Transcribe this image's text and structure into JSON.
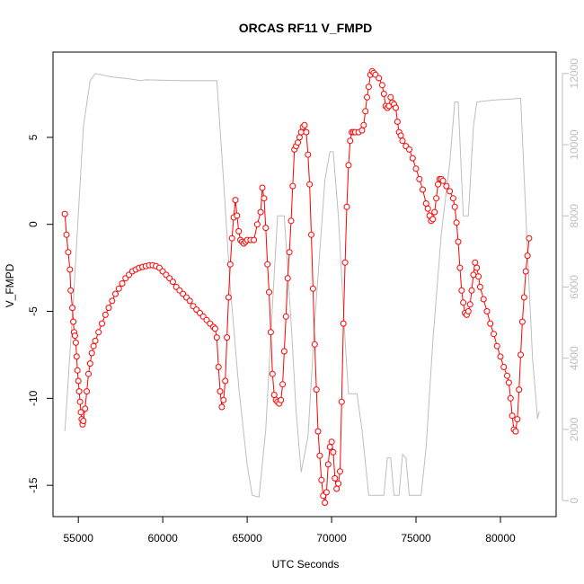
{
  "chart_data": {
    "type": "line",
    "title": "ORCAS RF11 V_FMPD",
    "xlabel": "UTC Seconds",
    "ylabel": "V_FMPD",
    "xlim": [
      53500,
      83300
    ],
    "ylim": [
      -16.8,
      9.9
    ],
    "y2lim": [
      -450,
      12600
    ],
    "x_ticks": [
      55000,
      60000,
      65000,
      70000,
      75000,
      80000
    ],
    "y_ticks": [
      -15,
      -10,
      -5,
      0,
      5
    ],
    "y2_ticks": [
      0,
      2000,
      4000,
      6000,
      8000,
      10000,
      12000
    ],
    "series": [
      {
        "name": "",
        "axis": "left",
        "style": "points-and-lines",
        "color": "#ff0000",
        "points": [
          [
            54200,
            0.6
          ],
          [
            54300,
            -0.6
          ],
          [
            54400,
            -1.6
          ],
          [
            54500,
            -2.6
          ],
          [
            54550,
            -3.8
          ],
          [
            54650,
            -4.8
          ],
          [
            54700,
            -5.6
          ],
          [
            54750,
            -6.2
          ],
          [
            54800,
            -6.4
          ],
          [
            54850,
            -6.8
          ],
          [
            54900,
            -7.6
          ],
          [
            54950,
            -8.4
          ],
          [
            55000,
            -9.0
          ],
          [
            55050,
            -9.6
          ],
          [
            55100,
            -10.2
          ],
          [
            55150,
            -10.8
          ],
          [
            55200,
            -11.2
          ],
          [
            55250,
            -11.5
          ],
          [
            55300,
            -11.3
          ],
          [
            55400,
            -10.6
          ],
          [
            55500,
            -9.6
          ],
          [
            55600,
            -8.6
          ],
          [
            55700,
            -8.0
          ],
          [
            55800,
            -7.4
          ],
          [
            55900,
            -7.0
          ],
          [
            56000,
            -6.7
          ],
          [
            56200,
            -6.2
          ],
          [
            56400,
            -5.7
          ],
          [
            56600,
            -5.2
          ],
          [
            56800,
            -4.8
          ],
          [
            57000,
            -4.4
          ],
          [
            57200,
            -4.0
          ],
          [
            57400,
            -3.7
          ],
          [
            57600,
            -3.4
          ],
          [
            57800,
            -3.1
          ],
          [
            58000,
            -2.9
          ],
          [
            58200,
            -2.7
          ],
          [
            58400,
            -2.6
          ],
          [
            58600,
            -2.5
          ],
          [
            58800,
            -2.45
          ],
          [
            59000,
            -2.4
          ],
          [
            59200,
            -2.35
          ],
          [
            59400,
            -2.35
          ],
          [
            59600,
            -2.4
          ],
          [
            59800,
            -2.5
          ],
          [
            60000,
            -2.7
          ],
          [
            60200,
            -2.9
          ],
          [
            60400,
            -3.1
          ],
          [
            60600,
            -3.3
          ],
          [
            60800,
            -3.6
          ],
          [
            61000,
            -3.8
          ],
          [
            61200,
            -4.0
          ],
          [
            61400,
            -4.2
          ],
          [
            61600,
            -4.4
          ],
          [
            61800,
            -4.7
          ],
          [
            62000,
            -4.9
          ],
          [
            62200,
            -5.1
          ],
          [
            62400,
            -5.3
          ],
          [
            62600,
            -5.5
          ],
          [
            62800,
            -5.7
          ],
          [
            63000,
            -5.9
          ],
          [
            63100,
            -6.0
          ],
          [
            63200,
            -6.5
          ],
          [
            63300,
            -8.2
          ],
          [
            63400,
            -9.6
          ],
          [
            63500,
            -10.5
          ],
          [
            63600,
            -10.1
          ],
          [
            63700,
            -9.0
          ],
          [
            63800,
            -6.5
          ],
          [
            63900,
            -4.2
          ],
          [
            64000,
            -2.3
          ],
          [
            64100,
            -0.8
          ],
          [
            64200,
            0.4
          ],
          [
            64300,
            1.4
          ],
          [
            64400,
            0.5
          ],
          [
            64500,
            -0.4
          ],
          [
            64600,
            -0.9
          ],
          [
            64700,
            -1.0
          ],
          [
            64800,
            -1.1
          ],
          [
            64900,
            -1.0
          ],
          [
            65000,
            -0.9
          ],
          [
            65200,
            -0.9
          ],
          [
            65400,
            -0.9
          ],
          [
            65600,
            0.0
          ],
          [
            65800,
            0.7
          ],
          [
            65900,
            2.1
          ],
          [
            66000,
            1.5
          ],
          [
            66100,
            -0.2
          ],
          [
            66200,
            -2.3
          ],
          [
            66300,
            -3.9
          ],
          [
            66400,
            -6.2
          ],
          [
            66500,
            -8.6
          ],
          [
            66600,
            -9.8
          ],
          [
            66700,
            -10.1
          ],
          [
            66800,
            -10.2
          ],
          [
            66900,
            -10.3
          ],
          [
            67000,
            -10.1
          ],
          [
            67100,
            -9.2
          ],
          [
            67200,
            -7.3
          ],
          [
            67300,
            -5.3
          ],
          [
            67400,
            -3.1
          ],
          [
            67500,
            -1.6
          ],
          [
            67600,
            0.2
          ],
          [
            67700,
            2.2
          ],
          [
            67800,
            4.3
          ],
          [
            67900,
            4.5
          ],
          [
            68000,
            4.7
          ],
          [
            68100,
            5.0
          ],
          [
            68200,
            5.3
          ],
          [
            68300,
            5.6
          ],
          [
            68400,
            5.7
          ],
          [
            68500,
            5.3
          ],
          [
            68600,
            4.0
          ],
          [
            68700,
            2.3
          ],
          [
            68800,
            -0.6
          ],
          [
            68900,
            -3.7
          ],
          [
            69000,
            -6.9
          ],
          [
            69100,
            -9.5
          ],
          [
            69200,
            -11.9
          ],
          [
            69300,
            -13.3
          ],
          [
            69400,
            -14.7
          ],
          [
            69500,
            -15.6
          ],
          [
            69600,
            -16.0
          ],
          [
            69700,
            -15.4
          ],
          [
            69800,
            -13.8
          ],
          [
            69900,
            -12.8
          ],
          [
            70000,
            -12.5
          ],
          [
            70100,
            -13.1
          ],
          [
            70200,
            -14.6
          ],
          [
            70300,
            -15.2
          ],
          [
            70400,
            -14.9
          ],
          [
            70500,
            -14.2
          ],
          [
            70600,
            -10.2
          ],
          [
            70700,
            -5.7
          ],
          [
            70800,
            -2.2
          ],
          [
            70900,
            1.0
          ],
          [
            71000,
            3.4
          ],
          [
            71100,
            4.8
          ],
          [
            71200,
            5.3
          ],
          [
            71300,
            5.3
          ],
          [
            71400,
            5.3
          ],
          [
            71600,
            5.3
          ],
          [
            71800,
            5.4
          ],
          [
            71900,
            5.7
          ],
          [
            72000,
            6.5
          ],
          [
            72100,
            7.3
          ],
          [
            72200,
            7.9
          ],
          [
            72300,
            8.6
          ],
          [
            72400,
            8.8
          ],
          [
            72500,
            8.7
          ],
          [
            72600,
            8.6
          ],
          [
            72800,
            8.4
          ],
          [
            73000,
            8.0
          ],
          [
            73100,
            7.5
          ],
          [
            73200,
            6.8
          ],
          [
            73300,
            6.7
          ],
          [
            73400,
            6.8
          ],
          [
            73500,
            7.3
          ],
          [
            73600,
            7.0
          ],
          [
            73700,
            6.9
          ],
          [
            73800,
            6.7
          ],
          [
            73900,
            5.9
          ],
          [
            74000,
            5.3
          ],
          [
            74100,
            5.1
          ],
          [
            74200,
            4.8
          ],
          [
            74400,
            4.5
          ],
          [
            74600,
            4.3
          ],
          [
            74800,
            3.8
          ],
          [
            75000,
            3.2
          ],
          [
            75200,
            2.6
          ],
          [
            75400,
            2.0
          ],
          [
            75600,
            1.2
          ],
          [
            75700,
            0.9
          ],
          [
            75800,
            0.5
          ],
          [
            75900,
            0.2
          ],
          [
            76000,
            0.3
          ],
          [
            76100,
            0.7
          ],
          [
            76200,
            1.5
          ],
          [
            76300,
            2.3
          ],
          [
            76400,
            2.6
          ],
          [
            76500,
            2.6
          ],
          [
            76600,
            2.5
          ],
          [
            76800,
            2.2
          ],
          [
            77000,
            1.9
          ],
          [
            77200,
            1.5
          ],
          [
            77300,
            1.0
          ],
          [
            77400,
            0.1
          ],
          [
            77500,
            -1.0
          ],
          [
            77600,
            -2.5
          ],
          [
            77700,
            -3.8
          ],
          [
            77800,
            -4.5
          ],
          [
            77900,
            -5.1
          ],
          [
            78000,
            -5.2
          ],
          [
            78100,
            -5.0
          ],
          [
            78200,
            -4.6
          ],
          [
            78300,
            -3.8
          ],
          [
            78400,
            -2.9
          ],
          [
            78500,
            -2.2
          ],
          [
            78600,
            -2.5
          ],
          [
            78700,
            -3.0
          ],
          [
            78800,
            -3.6
          ],
          [
            79000,
            -4.3
          ],
          [
            79200,
            -5.0
          ],
          [
            79400,
            -5.7
          ],
          [
            79600,
            -6.3
          ],
          [
            79800,
            -7.0
          ],
          [
            80000,
            -7.6
          ],
          [
            80200,
            -8.2
          ],
          [
            80400,
            -8.7
          ],
          [
            80500,
            -9.1
          ],
          [
            80600,
            -10.0
          ],
          [
            80700,
            -11.0
          ],
          [
            80800,
            -11.8
          ],
          [
            80900,
            -11.9
          ],
          [
            81000,
            -11.2
          ],
          [
            81100,
            -9.5
          ],
          [
            81200,
            -7.5
          ],
          [
            81300,
            -5.6
          ],
          [
            81400,
            -4.2
          ],
          [
            81500,
            -2.7
          ],
          [
            81600,
            -1.8
          ],
          [
            81700,
            -0.8
          ]
        ]
      },
      {
        "name": "",
        "axis": "right",
        "style": "line",
        "color": "#bebebe",
        "points": [
          [
            54200,
            1950
          ],
          [
            54700,
            5600
          ],
          [
            55300,
            10500
          ],
          [
            55700,
            11800
          ],
          [
            56000,
            12000
          ],
          [
            57000,
            11900
          ],
          [
            58000,
            11850
          ],
          [
            58700,
            11800
          ],
          [
            59000,
            11820
          ],
          [
            61000,
            11800
          ],
          [
            63200,
            11800
          ],
          [
            63600,
            9000
          ],
          [
            64000,
            6000
          ],
          [
            64500,
            3200
          ],
          [
            65000,
            1000
          ],
          [
            65300,
            150
          ],
          [
            65700,
            100
          ],
          [
            66100,
            2000
          ],
          [
            66500,
            5500
          ],
          [
            66800,
            8000
          ],
          [
            67200,
            8000
          ],
          [
            67600,
            5000
          ],
          [
            67900,
            2500
          ],
          [
            68200,
            800
          ],
          [
            68600,
            1800
          ],
          [
            69000,
            5000
          ],
          [
            69300,
            7000
          ],
          [
            69600,
            9000
          ],
          [
            69900,
            9800
          ],
          [
            70100,
            9800
          ],
          [
            70400,
            8000
          ],
          [
            70800,
            4500
          ],
          [
            71000,
            3000
          ],
          [
            71500,
            3000
          ],
          [
            71800,
            2000
          ],
          [
            72200,
            150
          ],
          [
            72800,
            150
          ],
          [
            73100,
            150
          ],
          [
            73300,
            1200
          ],
          [
            73500,
            1200
          ],
          [
            73700,
            150
          ],
          [
            74000,
            150
          ],
          [
            74200,
            1300
          ],
          [
            74400,
            1200
          ],
          [
            74600,
            150
          ],
          [
            75300,
            150
          ],
          [
            75600,
            1500
          ],
          [
            76000,
            4500
          ],
          [
            76500,
            7500
          ],
          [
            77000,
            9500
          ],
          [
            77300,
            11200
          ],
          [
            77500,
            11200
          ],
          [
            77800,
            8000
          ],
          [
            78100,
            8000
          ],
          [
            78400,
            10500
          ],
          [
            78600,
            11200
          ],
          [
            79500,
            11250
          ],
          [
            81200,
            11300
          ],
          [
            81600,
            7000
          ],
          [
            81900,
            4000
          ],
          [
            82200,
            2300
          ],
          [
            82300,
            2500
          ]
        ]
      }
    ]
  }
}
